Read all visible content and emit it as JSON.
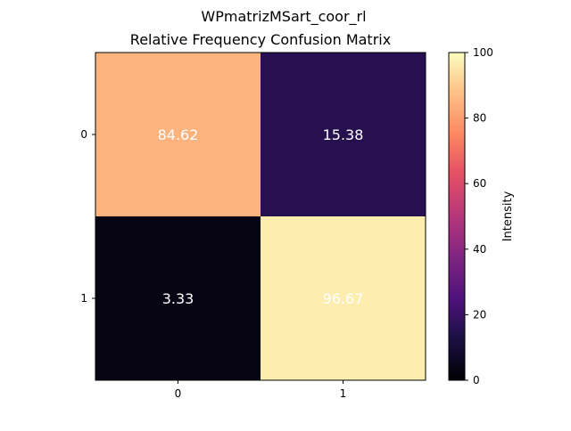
{
  "figure_title": "WPmatrizMSart_coor_rl",
  "chart_data": {
    "type": "heatmap",
    "title": "Relative Frequency Confusion Matrix",
    "rows": [
      "0",
      "1"
    ],
    "columns": [
      "0",
      "1"
    ],
    "values": [
      [
        84.62,
        15.38
      ],
      [
        3.33,
        96.67
      ]
    ],
    "value_labels": [
      [
        "84.62",
        "15.38"
      ],
      [
        "3.33",
        "96.67"
      ]
    ],
    "colormap": "magma",
    "vlim": [
      0,
      100
    ],
    "colorbar": {
      "label": "Intensity",
      "ticks": [
        0,
        20,
        40,
        60,
        80,
        100
      ]
    },
    "grid": false
  }
}
